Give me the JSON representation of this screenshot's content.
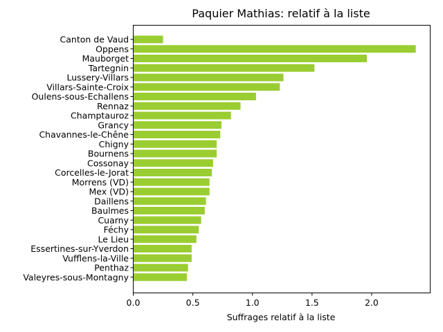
{
  "chart_data": {
    "type": "bar",
    "orientation": "horizontal",
    "title": "Paquier Mathias: relatif à la liste",
    "xlabel": "Suffrages relatif à la liste",
    "ylabel": "",
    "xlim": [
      0,
      2.5
    ],
    "xticks": [
      "0.0",
      "0.5",
      "1.0",
      "1.5",
      "2.0"
    ],
    "xtick_values": [
      0,
      0.5,
      1.0,
      1.5,
      2.0
    ],
    "bar_color": "#9acd32",
    "grid": false,
    "categories": [
      "Canton de Vaud",
      "Oppens",
      "Mauborget",
      "Tartegnin",
      "Lussery-Villars",
      "Villars-Sainte-Croix",
      "Oulens-sous-Echallens",
      "Rennaz",
      "Champtauroz",
      "Grancy",
      "Chavannes-le-Chêne",
      "Chigny",
      "Bournens",
      "Cossonay",
      "Corcelles-le-Jorat",
      "Morrens (VD)",
      "Mex (VD)",
      "Daillens",
      "Baulmes",
      "Cuarny",
      "Féchy",
      "Le Lieu",
      "Essertines-sur-Yverdon",
      "Vufflens-la-Ville",
      "Penthaz",
      "Valeyres-sous-Montagny"
    ],
    "values": [
      0.25,
      2.37,
      1.96,
      1.52,
      1.26,
      1.23,
      1.03,
      0.9,
      0.82,
      0.74,
      0.73,
      0.7,
      0.7,
      0.67,
      0.66,
      0.64,
      0.64,
      0.61,
      0.6,
      0.57,
      0.55,
      0.53,
      0.49,
      0.49,
      0.46,
      0.45
    ]
  }
}
